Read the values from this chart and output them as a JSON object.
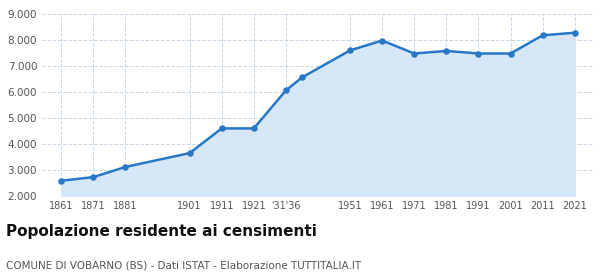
{
  "years": [
    1861,
    1871,
    1881,
    1901,
    1911,
    1921,
    1931,
    1936,
    1951,
    1961,
    1971,
    1981,
    1991,
    2001,
    2011,
    2021
  ],
  "population": [
    2587,
    2726,
    3118,
    3650,
    4600,
    4600,
    6060,
    6560,
    7600,
    7980,
    7480,
    7580,
    7480,
    7480,
    8180,
    8280
  ],
  "line_color": "#2778c8",
  "fill_color": "#d6e8f7",
  "marker_color": "#2778c8",
  "background_color": "#ffffff",
  "grid_color": "#c8d8e8",
  "ylim": [
    2000,
    9000
  ],
  "yticks": [
    2000,
    3000,
    4000,
    5000,
    6000,
    7000,
    8000,
    9000
  ],
  "title": "Popolazione residente ai censimenti",
  "subtitle": "COMUNE DI VOBARNO (BS) - Dati ISTAT - Elaborazione TUTTITALIA.IT",
  "title_fontsize": 11,
  "subtitle_fontsize": 7.5,
  "xlim_left": 1855,
  "xlim_right": 2027
}
